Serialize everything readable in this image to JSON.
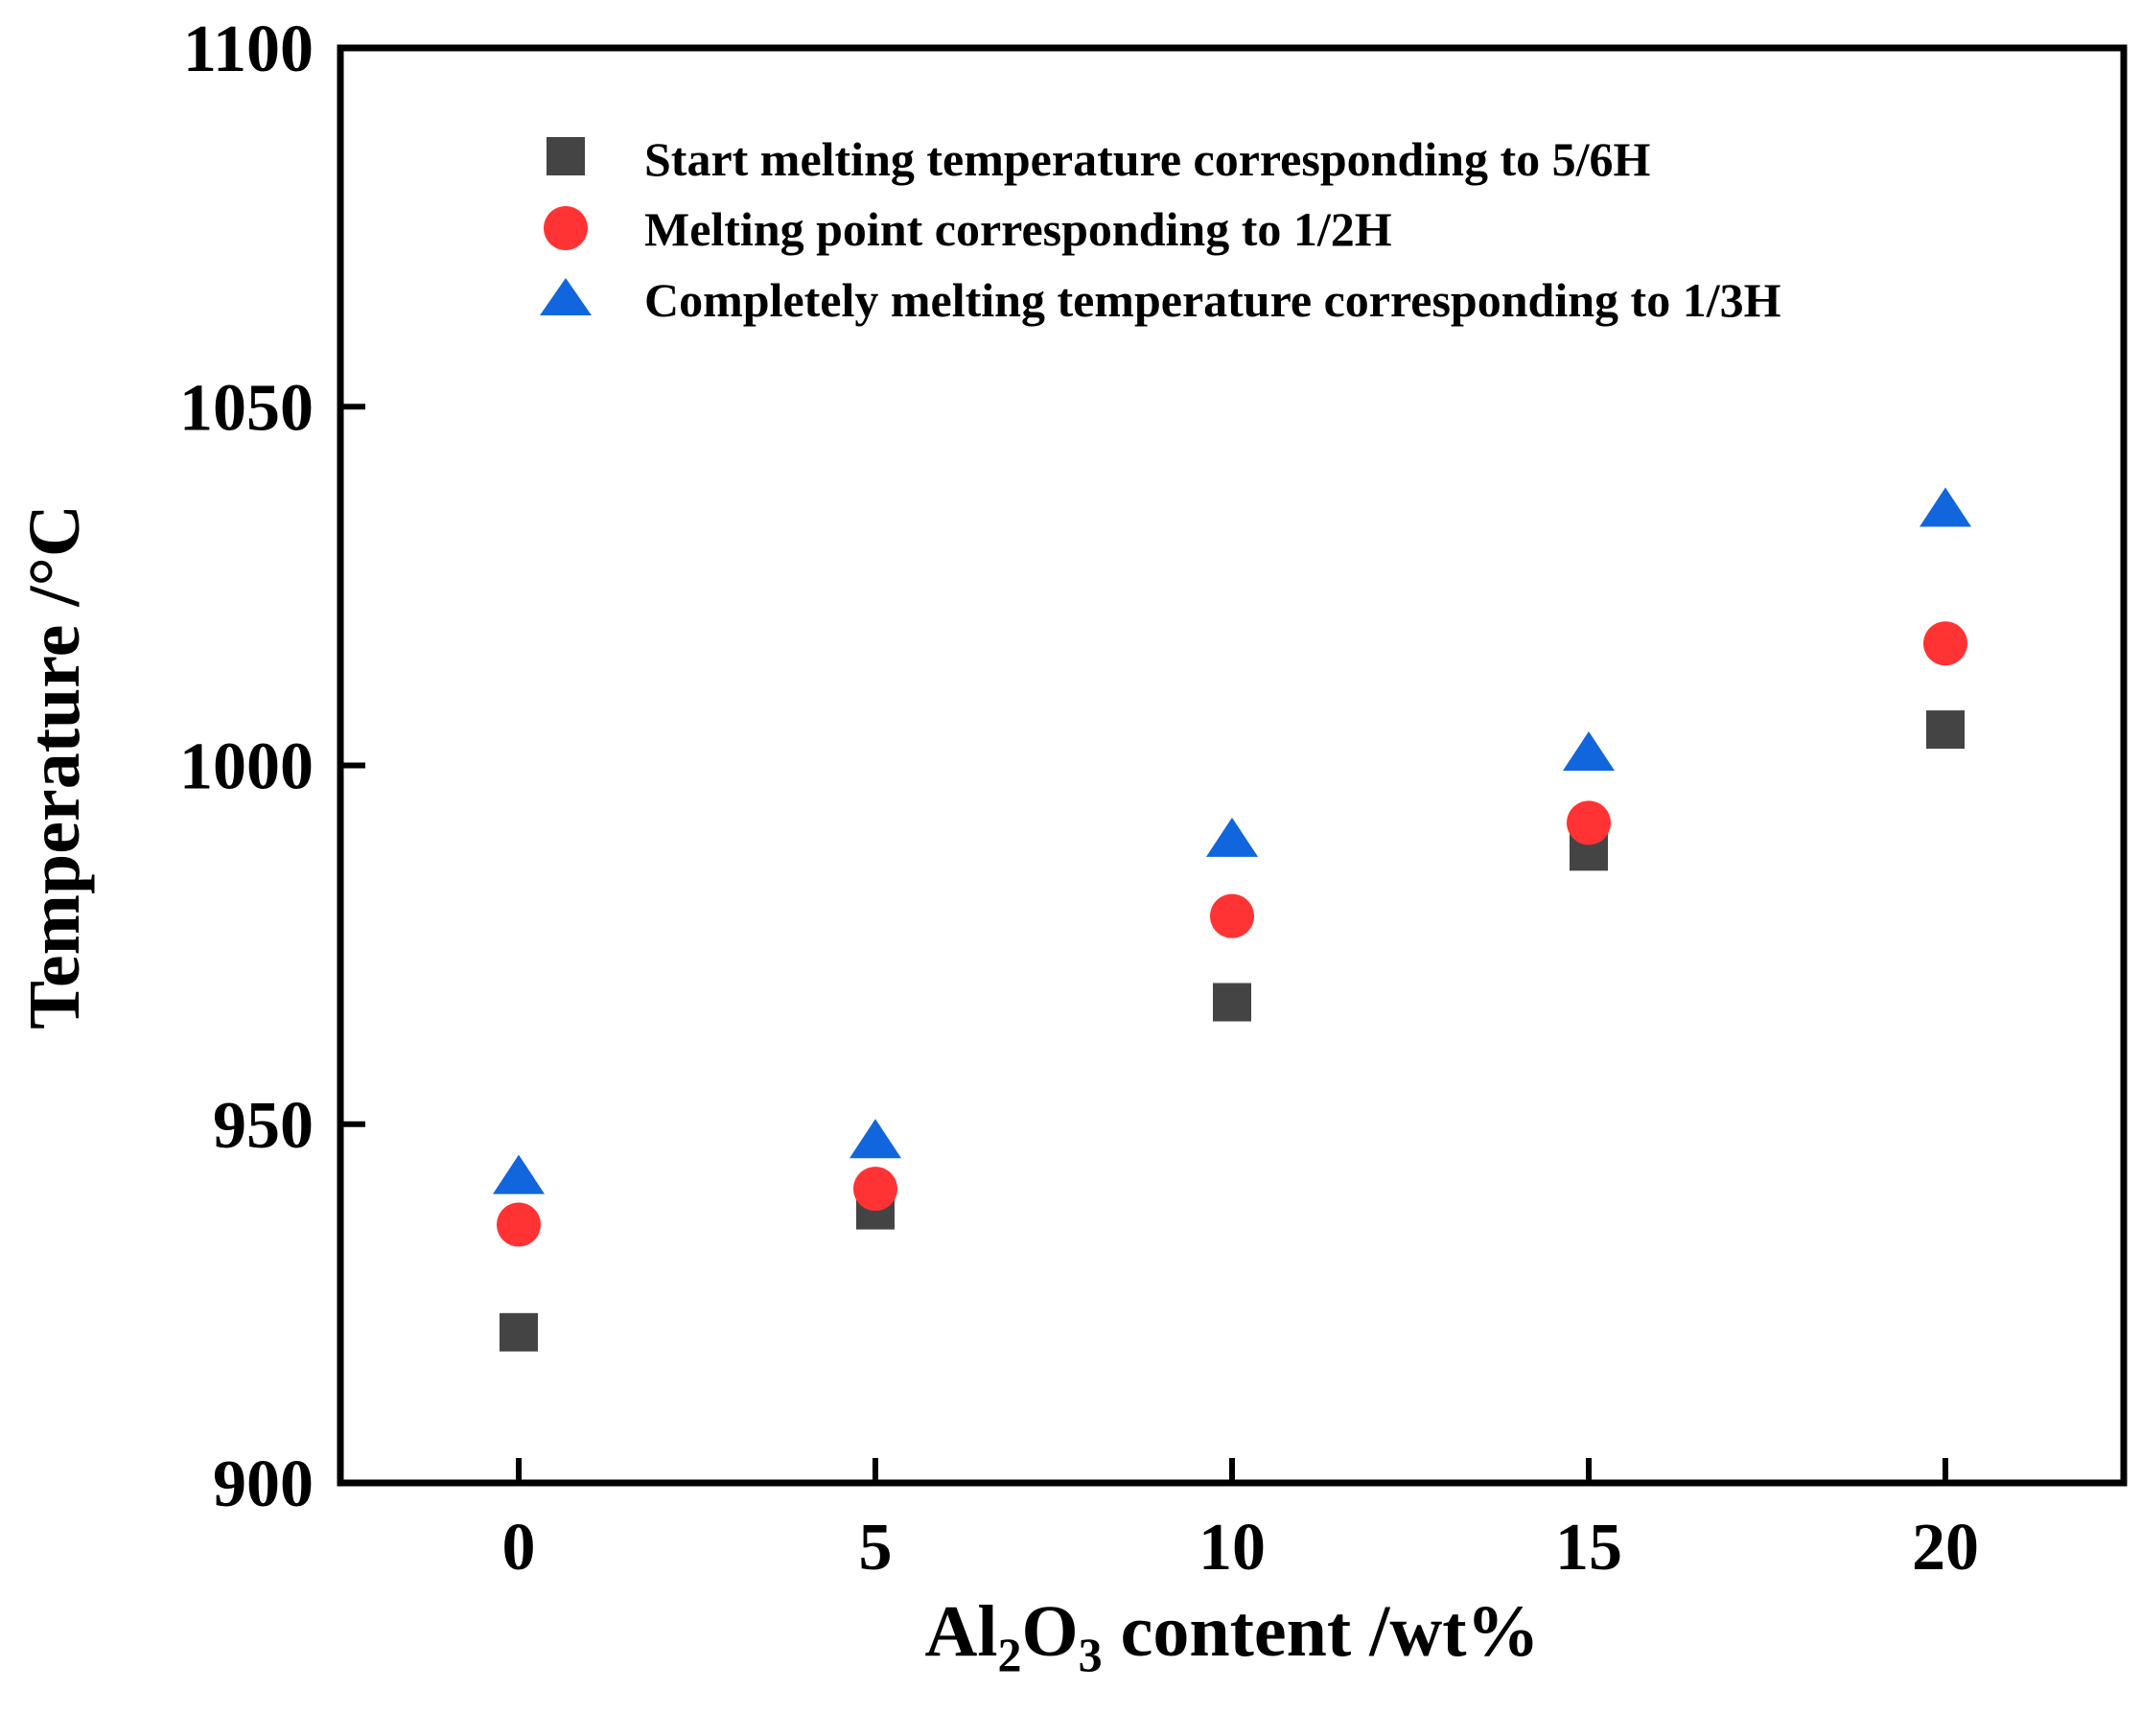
{
  "chart_data": {
    "type": "scatter",
    "title": "",
    "xlabel": {
      "prefix": "Al",
      "sub1": "2",
      "mid": "O",
      "sub2": "3",
      "suffix": " content /wt%"
    },
    "ylabel": "Temperature /°C",
    "x": [
      0,
      5,
      10,
      15,
      20
    ],
    "xticks": [
      "0",
      "5",
      "10",
      "15",
      "20"
    ],
    "yticks": [
      "900",
      "950",
      "1000",
      "1050",
      "1100"
    ],
    "xlim": [
      -2.5,
      22.5
    ],
    "ylim": [
      900,
      1100
    ],
    "legend_position": "top-center",
    "series": [
      {
        "name": "Start melting temperature corresponding to 5/6H",
        "marker": "square",
        "color": "#444444",
        "values": [
          921,
          938,
          967,
          988,
          1005
        ]
      },
      {
        "name": "Melting point corresponding to 1/2H",
        "marker": "circle",
        "color": "#ff3333",
        "values": [
          936,
          941,
          979,
          992,
          1017
        ]
      },
      {
        "name": "Completely melting temperature corresponding to 1/3H",
        "marker": "triangle",
        "color": "#1166dd",
        "values": [
          942,
          947,
          989,
          1001,
          1035
        ]
      }
    ]
  }
}
